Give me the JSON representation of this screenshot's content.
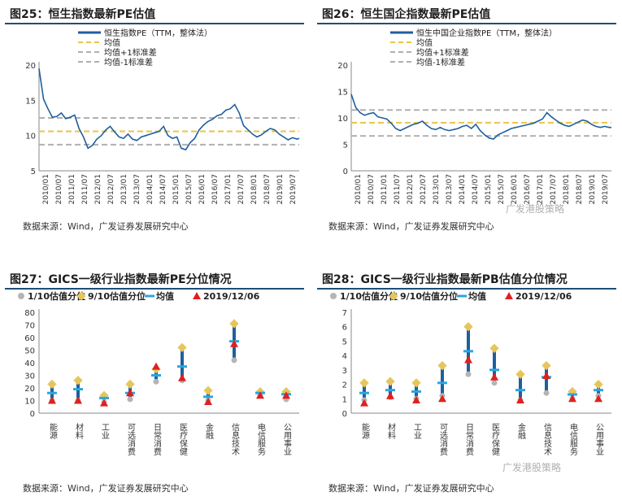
{
  "source_note": "数据来源：Wind，广发证券发展研究中心",
  "watermark": "广发港股策略",
  "chart_data": [
    {
      "id": "fig25",
      "type": "line",
      "title": "图25：恒生指数最新PE估值",
      "legend": [
        "恒生指数PE（TTM，整体法）",
        "均值",
        "均值+1标准差",
        "均值-1标准差"
      ],
      "ylim": [
        5,
        20
      ],
      "yticks": [
        5,
        10,
        15,
        20
      ],
      "xticks": [
        "2010/01",
        "2010/07",
        "2011/01",
        "2011/07",
        "2012/01",
        "2012/07",
        "2013/01",
        "2013/07",
        "2014/01",
        "2014/07",
        "2015/01",
        "2015/07",
        "2016/01",
        "2016/07",
        "2017/01",
        "2017/07",
        "2018/01",
        "2018/07",
        "2019/01",
        "2019/07"
      ],
      "mean": 10.6,
      "mean_plus_1sd": 12.5,
      "mean_minus_1sd": 8.7,
      "series_x": [
        0,
        2,
        4,
        6,
        8,
        10,
        12,
        14,
        16,
        18,
        20,
        22,
        24,
        26,
        28,
        30,
        32,
        34,
        36,
        38,
        40,
        42,
        44,
        46,
        48,
        50,
        52,
        54,
        56,
        58,
        60,
        62,
        64,
        66,
        68,
        70,
        72,
        74,
        76,
        78,
        80,
        82,
        84,
        86,
        88,
        90,
        92,
        94,
        96,
        98,
        100,
        102,
        104,
        106,
        108,
        110,
        112,
        114,
        116,
        117
      ],
      "series_y": [
        19.5,
        15.2,
        13.8,
        12.6,
        12.7,
        13.2,
        12.4,
        12.6,
        12.9,
        11.0,
        9.8,
        8.2,
        8.6,
        9.5,
        10.0,
        10.8,
        11.3,
        10.5,
        9.8,
        9.6,
        10.2,
        9.5,
        9.3,
        9.8,
        10.0,
        10.2,
        10.4,
        10.6,
        11.3,
        10.0,
        9.6,
        9.8,
        8.2,
        8.0,
        9.0,
        9.6,
        10.8,
        11.5,
        12.0,
        12.3,
        12.8,
        13.0,
        13.6,
        13.8,
        14.4,
        13.2,
        11.4,
        10.8,
        10.2,
        9.8,
        10.1,
        10.6,
        11.0,
        10.8,
        10.2,
        9.8,
        9.4,
        9.7,
        9.5,
        9.6
      ]
    },
    {
      "id": "fig26",
      "type": "line",
      "title": "图26：恒生国企指数最新PE估值",
      "legend": [
        "恒生中国企业指数PE（TTM，整体法）",
        "均值",
        "均值+1标准差",
        "均值-1标准差"
      ],
      "ylim": [
        0,
        20
      ],
      "yticks": [
        0,
        5,
        10,
        15,
        20
      ],
      "xticks": [
        "2010/01",
        "2010/07",
        "2011/01",
        "2011/07",
        "2012/01",
        "2012/07",
        "2013/01",
        "2013/07",
        "2014/01",
        "2014/07",
        "2015/01",
        "2015/07",
        "2016/01",
        "2016/07",
        "2017/01",
        "2017/07",
        "2018/01",
        "2018/07",
        "2019/01",
        "2019/07"
      ],
      "mean": 9.1,
      "mean_plus_1sd": 11.5,
      "mean_minus_1sd": 6.6,
      "series_x": [
        0,
        2,
        4,
        6,
        8,
        10,
        12,
        14,
        16,
        18,
        20,
        22,
        24,
        26,
        28,
        30,
        32,
        34,
        36,
        38,
        40,
        42,
        44,
        46,
        48,
        50,
        52,
        54,
        56,
        58,
        60,
        62,
        64,
        66,
        68,
        70,
        72,
        74,
        76,
        78,
        80,
        82,
        84,
        86,
        88,
        90,
        92,
        94,
        96,
        98,
        100,
        102,
        104,
        106,
        108,
        110,
        112,
        114,
        116,
        117
      ],
      "series_y": [
        14.5,
        12.0,
        11.0,
        10.5,
        10.8,
        11.0,
        10.2,
        10.0,
        9.8,
        9.0,
        8.0,
        7.6,
        8.0,
        8.4,
        8.8,
        9.0,
        9.4,
        8.6,
        8.0,
        7.8,
        8.2,
        7.8,
        7.6,
        7.8,
        8.0,
        8.4,
        8.6,
        8.0,
        8.8,
        7.6,
        6.8,
        6.2,
        6.0,
        6.8,
        7.2,
        7.6,
        8.0,
        8.2,
        8.4,
        8.6,
        8.8,
        9.0,
        9.4,
        9.8,
        11.0,
        10.2,
        9.6,
        9.0,
        8.6,
        8.4,
        8.8,
        9.2,
        9.6,
        9.4,
        8.8,
        8.4,
        8.2,
        8.4,
        8.2,
        8.2
      ]
    },
    {
      "id": "fig27",
      "type": "scatter",
      "title": "图27：GICS一级行业指数最新PE分位情况",
      "legend": [
        "1/10估值分位",
        "9/10估值分位",
        "均值",
        "2019/12/06"
      ],
      "ylim": [
        0,
        80
      ],
      "yticks": [
        0,
        10,
        20,
        30,
        40,
        50,
        60,
        70,
        80
      ],
      "categories": [
        "能源",
        "材料",
        "工业",
        "可选消费",
        "日常消费",
        "医疗保健",
        "金融",
        "信息技术",
        "电信服务",
        "公用事业"
      ],
      "p10": [
        10,
        10,
        9,
        11,
        25,
        26,
        10,
        42,
        14,
        11
      ],
      "p90": [
        23,
        26,
        14,
        23,
        35,
        52,
        18,
        71,
        17,
        17
      ],
      "mean": [
        16,
        19,
        12,
        16,
        30,
        37,
        13,
        57,
        16,
        15
      ],
      "latest": [
        10,
        10,
        8,
        16,
        37,
        28,
        9,
        55,
        14,
        14
      ]
    },
    {
      "id": "fig28",
      "type": "scatter",
      "title": "图28：GICS一级行业指数最新PB估值分位情况",
      "legend": [
        "1/10估值分位",
        "9/10估值分位",
        "均值",
        "2019/12/06"
      ],
      "ylim": [
        0,
        7
      ],
      "yticks": [
        0,
        1,
        2,
        3,
        4,
        5,
        6,
        7
      ],
      "categories": [
        "能源",
        "材料",
        "工业",
        "可选消费",
        "日常消费",
        "医疗保健",
        "金融",
        "信息技术",
        "电信服务",
        "公用事业"
      ],
      "p10": [
        0.9,
        1.1,
        1.0,
        1.2,
        2.7,
        2.1,
        0.9,
        1.4,
        1.0,
        1.2
      ],
      "p90": [
        2.1,
        2.2,
        2.1,
        3.3,
        6.0,
        4.5,
        2.7,
        3.3,
        1.5,
        2.0
      ],
      "mean": [
        1.4,
        1.6,
        1.5,
        2.1,
        4.3,
        3.0,
        1.6,
        2.5,
        1.3,
        1.6
      ],
      "latest": [
        0.7,
        1.2,
        0.9,
        1.0,
        3.7,
        2.5,
        0.9,
        2.6,
        1.0,
        1.0
      ]
    }
  ]
}
